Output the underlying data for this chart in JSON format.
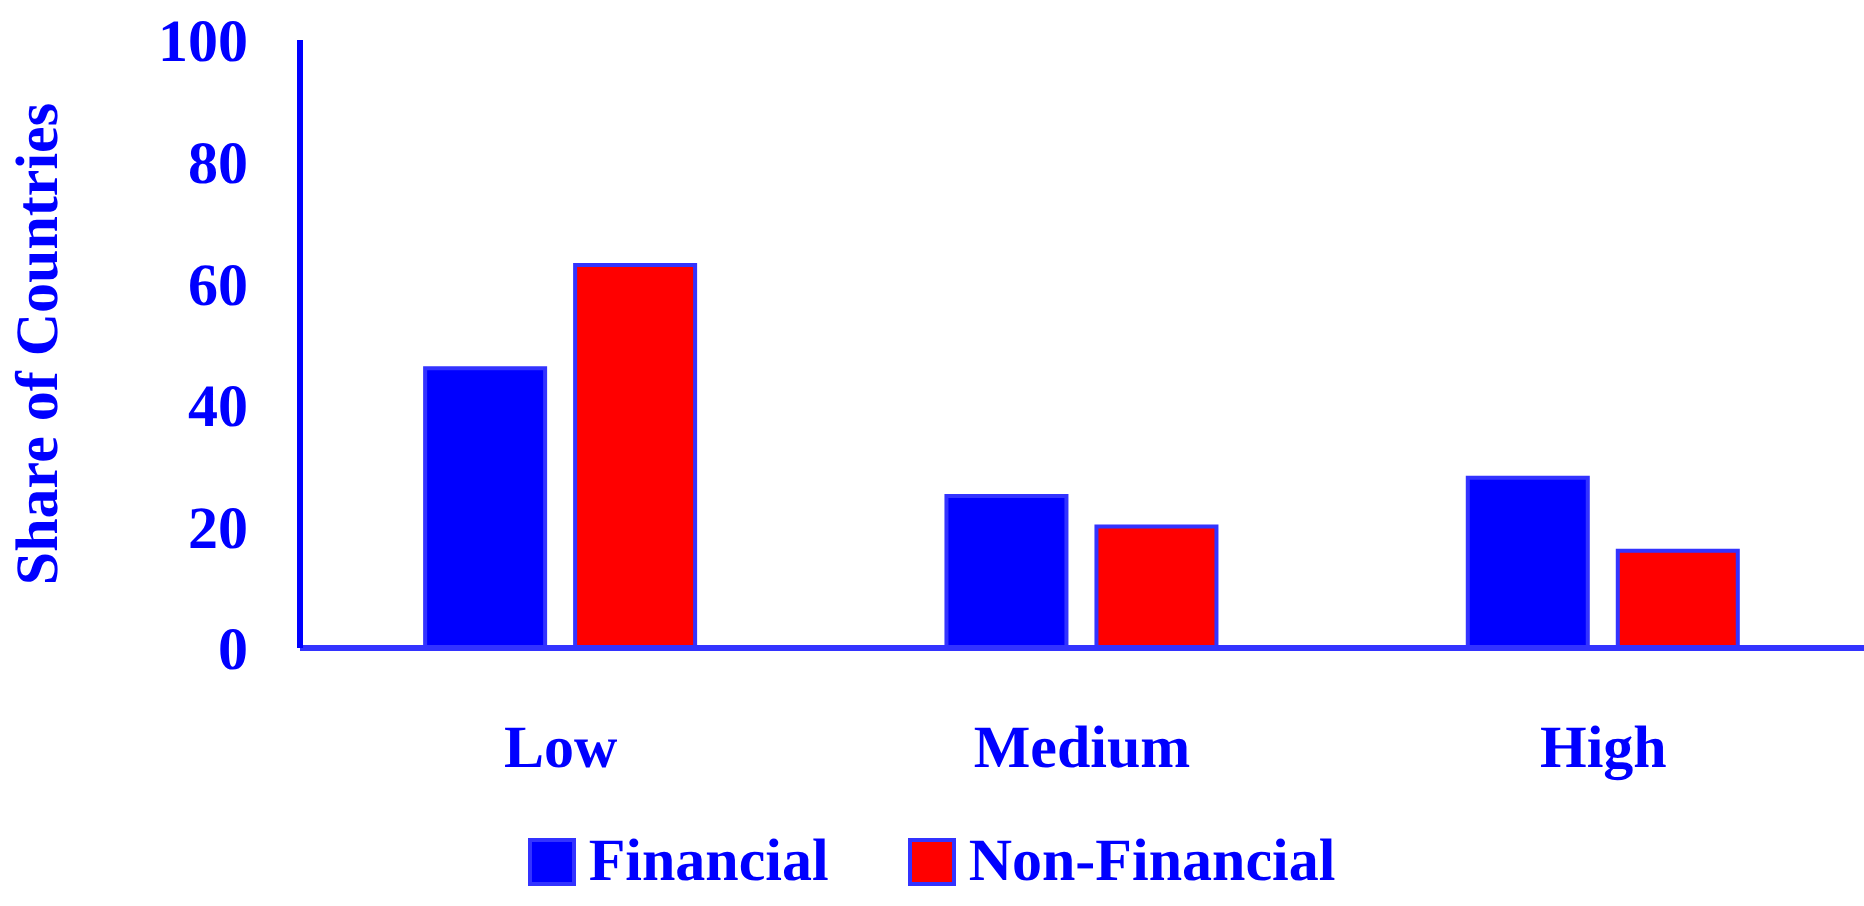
{
  "chart_data": {
    "type": "bar",
    "ylabel": "Share of Countries",
    "categories": [
      "Low",
      "Medium",
      "High"
    ],
    "series": [
      {
        "name": "Financial",
        "color": "#0000ff",
        "values": [
          46,
          25,
          28
        ]
      },
      {
        "name": "Non-Financial",
        "color": "#ff0000",
        "values": [
          63,
          20,
          16
        ]
      }
    ],
    "ylim": [
      0,
      100
    ],
    "yticks": [
      0,
      20,
      40,
      60,
      80,
      100
    ],
    "grid": false,
    "legend": "bottom"
  }
}
